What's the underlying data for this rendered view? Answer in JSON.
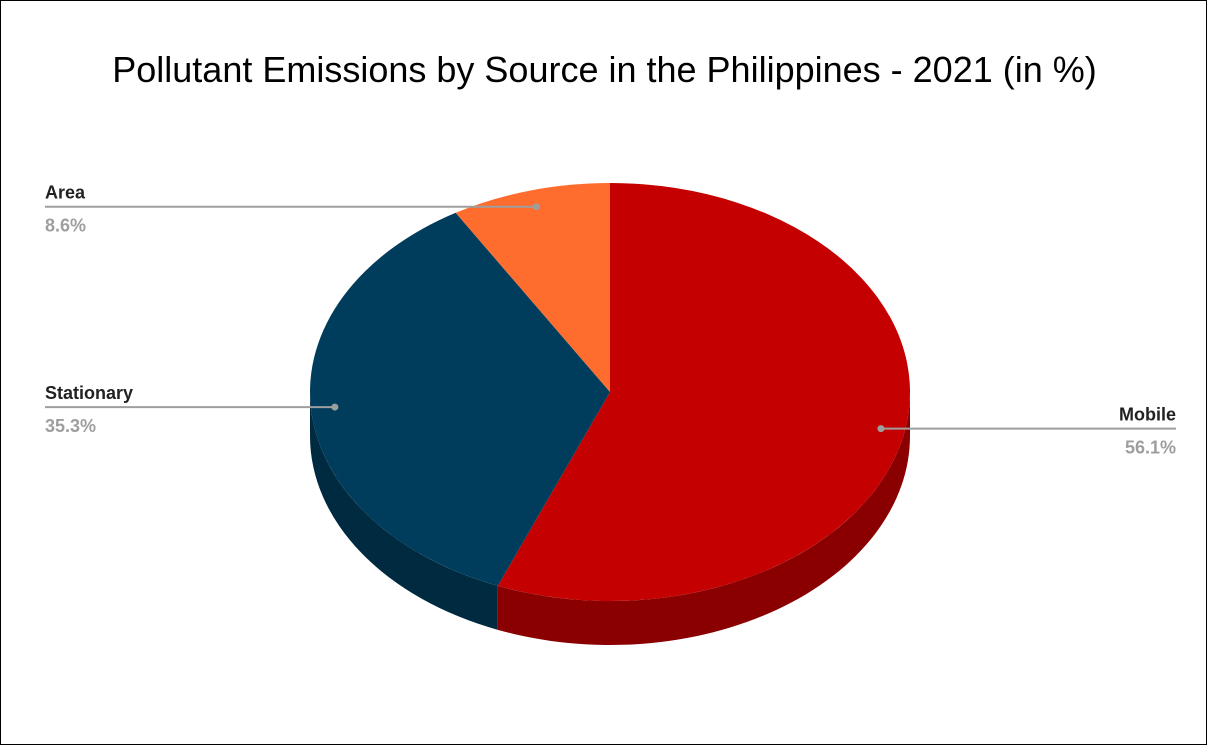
{
  "chart_data": {
    "type": "pie",
    "title": "Pollutant Emissions by Source in the Philippines - 2021 (in %)",
    "three_d": true,
    "slices": [
      {
        "name": "Mobile",
        "value": 56.1,
        "value_label": "56.1%",
        "color": "#c50000",
        "side_color": "#8a0000"
      },
      {
        "name": "Stationary",
        "value": 35.3,
        "value_label": "35.3%",
        "color": "#003d5c",
        "side_color": "#002a40"
      },
      {
        "name": "Area",
        "value": 8.6,
        "value_label": "8.6%",
        "color": "#ff6d2e",
        "side_color": "#b84a1d"
      }
    ],
    "start_angle_deg": 0,
    "direction": "clockwise",
    "legend": "none",
    "label_style": "leader-lines"
  }
}
